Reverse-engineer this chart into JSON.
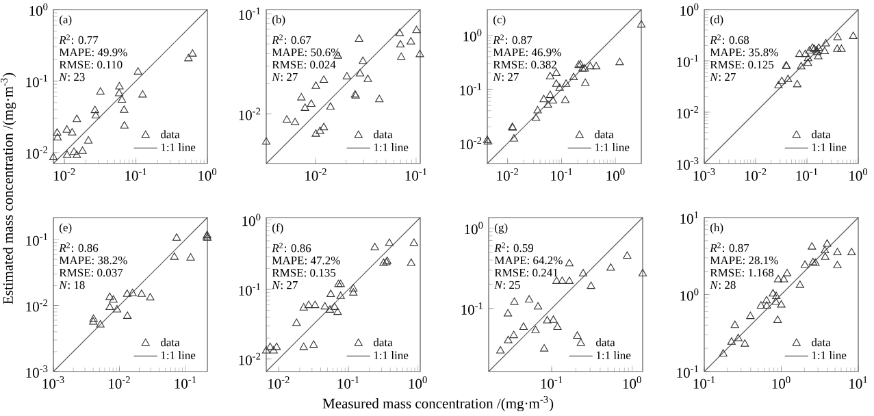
{
  "chart_data": [
    {
      "type": "scatter",
      "ylabel": "Estimated mass concentration /(mg·m$^{-3}$)",
      "xlim": [
        0.007,
        1
      ],
      "ylim": [
        0.007,
        1
      ],
      "xticks": [
        {
          "value": 0.01,
          "label": "10$^{-2}$"
        },
        {
          "value": 0.1,
          "label": "10$^{-1}$"
        },
        {
          "value": 1,
          "label": "10$^{0}$"
        }
      ],
      "yticks": [
        {
          "value": 0.01,
          "label": "10$^{-2}$"
        },
        {
          "value": 0.1,
          "label": "10$^{-1}$"
        },
        {
          "value": 1,
          "label": "10$^{0}$"
        }
      ],
      "log": "xy",
      "legend": "bottom right",
      "annotations": [
        "(a)",
        "*R*$^{2}$: 0.77",
        "MAPE: 49.9%",
        "RMSE: 0.110",
        "*N*: 23"
      ],
      "series": [
        {
          "name": "data",
          "type": "scatter",
          "marker": "triangle",
          "color": "#333333",
          "x": [
            0.007,
            0.0079,
            0.008,
            0.0108,
            0.0109,
            0.0128,
            0.0136,
            0.0149,
            0.0149,
            0.0179,
            0.0216,
            0.0267,
            0.0275,
            0.0319,
            0.0588,
            0.0583,
            0.0637,
            0.0684,
            0.069,
            0.107,
            0.124,
            0.543,
            0.62
          ],
          "values": [
            0.0085,
            0.0187,
            0.016,
            0.0206,
            0.0091,
            0.0188,
            0.0101,
            0.0091,
            0.029,
            0.0104,
            0.0145,
            0.0387,
            0.0327,
            0.0703,
            0.083,
            0.0667,
            0.054,
            0.039,
            0.0235,
            0.134,
            0.064,
            0.206,
            0.239
          ]
        },
        {
          "name": "1:1 line",
          "type": "line",
          "marker": "none",
          "line_style": "solid",
          "color": "#555555",
          "x": [
            0.007,
            1
          ],
          "values": [
            0.007,
            1
          ]
        }
      ]
    },
    {
      "type": "scatter",
      "xlim": [
        0.0032,
        0.11
      ],
      "ylim": [
        0.0032,
        0.11
      ],
      "xticks": [
        {
          "value": 0.01,
          "label": "10$^{-2}$"
        },
        {
          "value": 0.1,
          "label": "10$^{-1}$"
        }
      ],
      "yticks": [
        {
          "value": 0.01,
          "label": "10$^{-2}$"
        },
        {
          "value": 0.1,
          "label": "10$^{-1}$"
        }
      ],
      "log": "xy",
      "legend": "bottom right",
      "annotations": [
        "(b)",
        "*R*$^{2}$: 0.67",
        "MAPE: 50.6%",
        "RMSE: 0.024",
        "*N*: 27"
      ],
      "series": [
        {
          "name": "data",
          "type": "scatter",
          "marker": "triangle",
          "color": "#333333",
          "x": [
            0.0032,
            0.00513,
            0.0062,
            0.00717,
            0.0078,
            0.009,
            0.01,
            0.01,
            0.011,
            0.012,
            0.012,
            0.014,
            0.0166,
            0.0204,
            0.0246,
            0.025,
            0.027,
            0.0276,
            0.0295,
            0.033,
            0.043,
            0.0686,
            0.0698,
            0.0711,
            0.0887,
            0.101,
            0.109
          ],
          "values": [
            0.00526,
            0.0087,
            0.0082,
            0.0145,
            0.0114,
            0.0125,
            0.0189,
            0.0063,
            0.0067,
            0.0073,
            0.0217,
            0.0117,
            0.0378,
            0.0235,
            0.0155,
            0.0151,
            0.0557,
            0.0252,
            0.0335,
            0.0221,
            0.0139,
            0.0635,
            0.0489,
            0.0368,
            0.0524,
            0.068,
            0.0392
          ]
        },
        {
          "name": "1:1 line",
          "type": "line",
          "marker": "none",
          "line_style": "solid",
          "color": "#555555",
          "x": [
            0.0032,
            0.11
          ],
          "values": [
            0.0032,
            0.11
          ]
        }
      ]
    },
    {
      "type": "scatter",
      "xlim": [
        0.0042,
        3.0
      ],
      "ylim": [
        0.0042,
        3.0
      ],
      "xticks": [
        {
          "value": 0.01,
          "label": "10$^{-2}$"
        },
        {
          "value": 0.1,
          "label": "10$^{-1}$"
        },
        {
          "value": 1,
          "label": "10$^{0}$"
        }
      ],
      "yticks": [
        {
          "value": 0.01,
          "label": "10$^{-2}$"
        },
        {
          "value": 0.1,
          "label": "10$^{-1}$"
        },
        {
          "value": 1,
          "label": "10$^{0}$"
        }
      ],
      "log": "xy",
      "legend": "bottom right",
      "annotations": [
        "(c)",
        "*R*$^{2}$: 0.87",
        "MAPE: 46.9%",
        "RMSE: 0.382",
        "*N*: 27"
      ],
      "series": [
        {
          "name": "data",
          "type": "scatter",
          "marker": "triangle",
          "color": "#333333",
          "x": [
            0.0042,
            0.0043,
            0.0122,
            0.0124,
            0.0131,
            0.0335,
            0.036,
            0.0467,
            0.0558,
            0.0614,
            0.0614,
            0.069,
            0.0798,
            0.0798,
            0.092,
            0.117,
            0.121,
            0.167,
            0.207,
            0.224,
            0.244,
            0.268,
            0.275,
            0.34,
            0.437,
            1.19,
            3.0
          ],
          "values": [
            0.0113,
            0.0105,
            0.0196,
            0.0192,
            0.012,
            0.029,
            0.04,
            0.0644,
            0.0507,
            0.077,
            0.171,
            0.0607,
            0.197,
            0.124,
            0.104,
            0.062,
            0.124,
            0.165,
            0.278,
            0.285,
            0.238,
            0.238,
            0.129,
            0.262,
            0.262,
            0.313,
            1.56
          ]
        },
        {
          "name": "1:1 line",
          "type": "line",
          "marker": "none",
          "line_style": "solid",
          "color": "#555555",
          "x": [
            0.0042,
            3.0
          ],
          "values": [
            0.0042,
            3.0
          ]
        }
      ]
    },
    {
      "type": "scatter",
      "xlim": [
        0.001,
        1
      ],
      "ylim": [
        0.001,
        1
      ],
      "xticks": [
        {
          "value": 0.001,
          "label": "10$^{-3}$"
        },
        {
          "value": 0.01,
          "label": "10$^{-2}$"
        },
        {
          "value": 0.1,
          "label": "10$^{-1}$"
        },
        {
          "value": 1,
          "label": "10$^{0}$"
        }
      ],
      "yticks": [
        {
          "value": 0.001,
          "label": "10$^{-3}$"
        },
        {
          "value": 0.01,
          "label": "10$^{-2}$"
        },
        {
          "value": 0.1,
          "label": "10$^{-1}$"
        },
        {
          "value": 1,
          "label": "10$^{0}$"
        }
      ],
      "log": "xy",
      "legend": "bottom right",
      "annotations": [
        "(d)",
        "*R*$^{2}$: 0.68",
        "MAPE: 35.8%",
        "RMSE: 0.125",
        "*N*: 27"
      ],
      "series": [
        {
          "name": "data",
          "type": "scatter",
          "marker": "triangle",
          "color": "#333333",
          "x": [
            0.0279,
            0.0324,
            0.0394,
            0.04,
            0.0427,
            0.0647,
            0.0716,
            0.0772,
            0.093,
            0.1045,
            0.1057,
            0.112,
            0.121,
            0.128,
            0.139,
            0.145,
            0.15,
            0.154,
            0.158,
            0.166,
            0.17,
            0.222,
            0.233,
            0.395,
            0.39,
            0.471,
            0.798
          ],
          "values": [
            0.0328,
            0.0396,
            0.08,
            0.078,
            0.0433,
            0.0345,
            0.134,
            0.077,
            0.134,
            0.0897,
            0.111,
            0.156,
            null,
            0.177,
            0.168,
            null,
            null,
            0.158,
            0.146,
            0.121,
            0.177,
            0.152,
            0.216,
            0.285,
            0.168,
            0.168,
            0.3
          ]
        },
        {
          "name": "1:1 line",
          "type": "line",
          "marker": "none",
          "line_style": "solid",
          "color": "#555555",
          "x": [
            0.001,
            1
          ],
          "values": [
            0.001,
            1
          ]
        }
      ]
    },
    {
      "type": "scatter",
      "xlim": [
        0.001,
        0.215
      ],
      "ylim": [
        0.001,
        0.215
      ],
      "xticks": [
        {
          "value": 0.001,
          "label": "10$^{-3}$"
        },
        {
          "value": 0.01,
          "label": "10$^{-2}$"
        },
        {
          "value": 0.1,
          "label": "10$^{-1}$"
        }
      ],
      "yticks": [
        {
          "value": 0.001,
          "label": "10$^{-3}$"
        },
        {
          "value": 0.01,
          "label": "10$^{-2}$"
        },
        {
          "value": 0.1,
          "label": "10$^{-1}$"
        }
      ],
      "log": "xy",
      "legend": "bottom right",
      "annotations": [
        "(e)",
        "*R*$^{2}$: 0.86",
        "MAPE: 38.2%",
        "RMSE: 0.037",
        "*N*: 18"
      ],
      "series": [
        {
          "name": "data",
          "type": "scatter",
          "marker": "triangle",
          "color": "#333333",
          "x": [
            0.00406,
            0.00402,
            0.00515,
            0.00714,
            0.0081,
            0.00714,
            0.0092,
            0.0132,
            0.0131,
            0.0158,
            0.0217,
            0.0293,
            0.068,
            0.0735,
            0.12,
            0.21,
            0.215,
            0.213
          ],
          "values": [
            0.0062,
            0.00562,
            0.0051,
            0.0133,
            0.0121,
            0.00935,
            0.0086,
            0.00688,
            0.0148,
            0.0152,
            0.0148,
            0.0131,
            0.054,
            0.105,
            0.0526,
            0.11,
            0.105,
            0.115
          ]
        },
        {
          "name": "1:1 line",
          "type": "line",
          "marker": "none",
          "line_style": "solid",
          "color": "#555555",
          "x": [
            0.001,
            0.215
          ],
          "values": [
            0.001,
            0.215
          ]
        }
      ]
    },
    {
      "type": "scatter",
      "xlabel": "Measured mass concentration /(mg·m$^{-3}$)",
      "xlim": [
        0.0066,
        1.08
      ],
      "ylim": [
        0.0066,
        1.08
      ],
      "xticks": [
        {
          "value": 0.01,
          "label": "10$^{-2}$"
        },
        {
          "value": 0.1,
          "label": "10$^{-1}$"
        },
        {
          "value": 1,
          "label": "10$^{0}$"
        }
      ],
      "yticks": [
        {
          "value": 0.01,
          "label": "10$^{-2}$"
        },
        {
          "value": 0.1,
          "label": "10$^{-1}$"
        },
        {
          "value": 1,
          "label": "10$^{0}$"
        }
      ],
      "log": "xy",
      "legend": "bottom right",
      "annotations": [
        "(f)",
        "*R*$^{2}$: 0.86",
        "MAPE: 47.2%",
        "RMSE: 0.135",
        "*N*: 27"
      ],
      "series": [
        {
          "name": "data",
          "type": "scatter",
          "marker": "triangle",
          "color": "#333333",
          "x": [
            0.0066,
            0.0075,
            0.0084,
            0.0093,
            0.018,
            0.0228,
            0.0228,
            0.0269,
            0.0332,
            0.0317,
            0.046,
            0.0543,
            0.0558,
            0.0634,
            0.0701,
            0.072,
            0.0775,
            0.0775,
            0.118,
            0.118,
            0.24,
            0.321,
            0.352,
            0.362,
            0.389,
            0.8,
            0.877
          ],
          "values": [
            0.0131,
            0.0147,
            0.0131,
            0.0147,
            0.0326,
            0.0543,
            0.0147,
            0.0589,
            0.0589,
            0.0158,
            0.0562,
            0.0505,
            0.0849,
            0.0553,
            0.0469,
            0.118,
            0.118,
            0.0796,
            0.102,
            0.0889,
            0.4,
            0.238,
            0.243,
            0.253,
            0.462,
            0.238,
            0.462
          ]
        },
        {
          "name": "1:1 line",
          "type": "line",
          "marker": "none",
          "line_style": "solid",
          "color": "#555555",
          "x": [
            0.0066,
            1.08
          ],
          "values": [
            0.0066,
            1.08
          ]
        }
      ]
    },
    {
      "type": "scatter",
      "xlim": [
        0.0165,
        1.35
      ],
      "ylim": [
        0.0165,
        1.35
      ],
      "xticks": [
        {
          "value": 0.1,
          "label": "10$^{-1}$"
        },
        {
          "value": 1,
          "label": "10$^{0}$"
        }
      ],
      "yticks": [
        {
          "value": 0.1,
          "label": "10$^{-1}$"
        },
        {
          "value": 1,
          "label": "10$^{0}$"
        }
      ],
      "log": "xy",
      "legend": "bottom right",
      "annotations": [
        "(g)",
        "*R*$^{2}$: 0.59",
        "MAPE: 64.2%",
        "RMSE: 0.241",
        "*N*: 25"
      ],
      "series": [
        {
          "name": "data",
          "type": "scatter",
          "marker": "triangle",
          "color": "#333333",
          "x": [
            0.0231,
            0.0288,
            0.0286,
            0.0338,
            0.0344,
            0.0447,
            0.0525,
            0.063,
            0.0677,
            0.0807,
            0.088,
            0.105,
            0.118,
            0.115,
            0.135,
            0.166,
            0.166,
            0.208,
            0.246,
            0.308,
            0.542,
            0.867,
            1.35
          ],
          "values": [
            0.0298,
            0.04,
            0.086,
            0.0462,
            0.12,
            0.0586,
            0.128,
            0.0533,
            0.105,
            0.0315,
            0.0705,
            0.0716,
            0.0586,
            0.218,
            0.218,
            0.218,
            0.361,
            0.0454,
            0.271,
            0.189,
            0.318,
            0.448,
            0.271
          ]
        },
        {
          "name": "1:1 line",
          "type": "line",
          "marker": "none",
          "line_style": "solid",
          "color": "#555555",
          "x": [
            0.0165,
            1.35
          ],
          "values": [
            0.0165,
            1.35
          ]
        }
      ]
    },
    {
      "type": "scatter",
      "xlim": [
        0.1,
        10
      ],
      "ylim": [
        0.1,
        10
      ],
      "xticks": [
        {
          "value": 0.1,
          "label": "10$^{-1}$"
        },
        {
          "value": 1,
          "label": "10$^{0}$"
        },
        {
          "value": 10,
          "label": "10$^{1}$"
        }
      ],
      "yticks": [
        {
          "value": 0.1,
          "label": "10$^{-1}$"
        },
        {
          "value": 1,
          "label": "10$^{0}$"
        },
        {
          "value": 10,
          "label": "10$^{1}$"
        }
      ],
      "log": "xy",
      "legend": "bottom right",
      "annotations": [
        "(h)",
        "*R*$^{2}$: 0.87",
        "MAPE: 28.1%",
        "RMSE: 1.168",
        "*N*: 28"
      ],
      "series": [
        {
          "name": "data",
          "type": "scatter",
          "marker": "triangle",
          "color": "#333333",
          "x": [
            0.176,
            0.226,
            0.25,
            0.276,
            0.336,
            0.397,
            0.545,
            0.648,
            0.644,
            0.78,
            0.861,
            0.847,
            1.0,
            0.897,
            0.912,
            1.08,
            1.19,
            1.75,
            2.03,
            2.5,
            2.58,
            2.78,
            3.69,
            3.72,
            3.94,
            5.36,
            5.36,
            8.19
          ],
          "values": [
            0.169,
            0.241,
            0.398,
            0.268,
            0.227,
            0.52,
            0.71,
            0.71,
            0.832,
            1.02,
            0.944,
            0.798,
            0.733,
            0.462,
            1.56,
            1.56,
            1.87,
            1.32,
            2.41,
            4.15,
            2.6,
            2.55,
            3.72,
            3.05,
            4.52,
            3.51,
            2.37,
            3.51
          ]
        },
        {
          "name": "1:1 line",
          "type": "line",
          "marker": "none",
          "line_style": "solid",
          "color": "#555555",
          "x": [
            0.1,
            10
          ],
          "values": [
            0.1,
            10
          ]
        }
      ]
    }
  ]
}
